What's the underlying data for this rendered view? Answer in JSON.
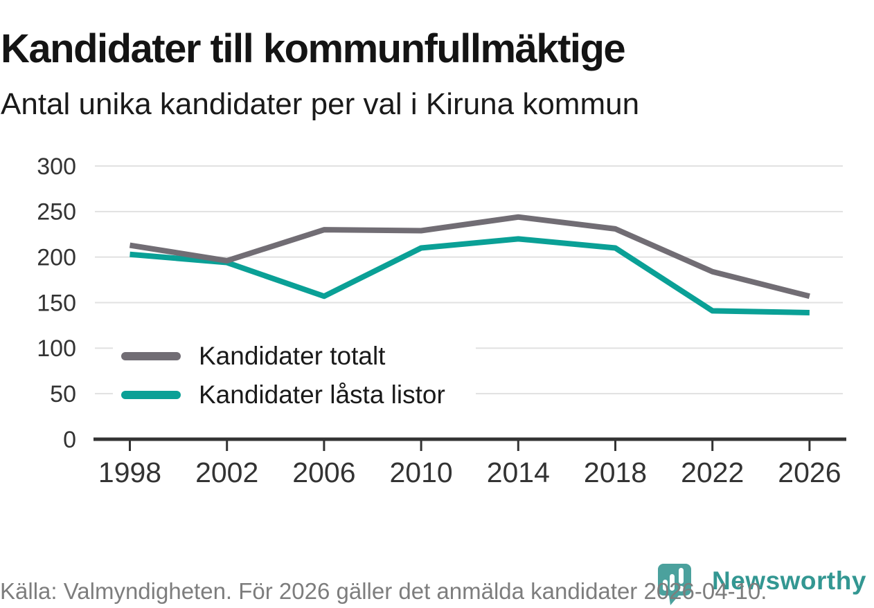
{
  "chart_data": {
    "type": "line",
    "title": "Kandidater till kommunfullmäktige",
    "subtitle": "Antal unika kandidater per val i Kiruna kommun",
    "categories": [
      "1998",
      "2002",
      "2006",
      "2010",
      "2014",
      "2018",
      "2022",
      "2026"
    ],
    "series": [
      {
        "name": "Kandidater totalt",
        "color": "#716d74",
        "values": [
          213,
          196,
          230,
          229,
          244,
          231,
          184,
          157
        ]
      },
      {
        "name": "Kandidater låsta listor",
        "color": "#0aa096",
        "values": [
          203,
          194,
          157,
          210,
          220,
          210,
          141,
          139
        ]
      }
    ],
    "xlabel": "",
    "ylabel": "",
    "ylim": [
      0,
      300
    ],
    "yticks": [
      0,
      50,
      100,
      150,
      200,
      250,
      300
    ],
    "grid": "horizontal",
    "legend_position": "inside-left"
  },
  "footer": {
    "source": "Källa: Valmyndigheten. För 2026 gäller det anmälda kandidater 2026-04-10."
  },
  "branding": {
    "name": "Newsworthy",
    "icon": "speech-bubble-bar-chart-icon",
    "icon_color": "#4ba19d",
    "text_color": "#339792"
  },
  "colors": {
    "grid": "#e1e1e1",
    "axis": "#333333",
    "text": "#1a1a1a",
    "muted": "#7d7d7d"
  }
}
